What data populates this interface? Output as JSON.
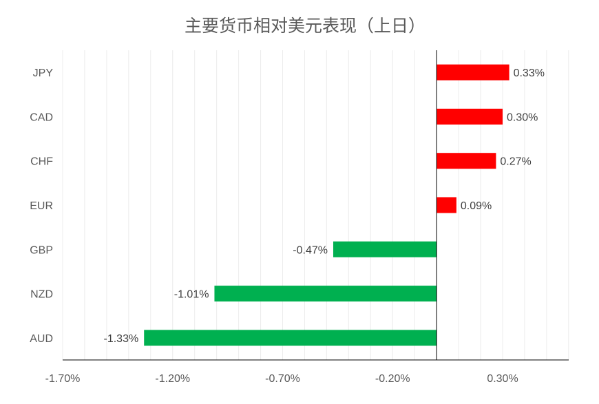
{
  "chart_data": {
    "type": "bar",
    "orientation": "horizontal",
    "title": "主要货币相对美元表现（上日）",
    "xlabel": "",
    "ylabel": "",
    "categories": [
      "JPY",
      "CAD",
      "CHF",
      "EUR",
      "GBP",
      "NZD",
      "AUD"
    ],
    "values": [
      0.33,
      0.3,
      0.27,
      0.09,
      -0.47,
      -1.01,
      -1.33
    ],
    "value_labels": [
      "0.33%",
      "0.30%",
      "0.27%",
      "0.09%",
      "-0.47%",
      "-1.01%",
      "-1.33%"
    ],
    "xlim": [
      -1.7,
      0.6
    ],
    "xticks": [
      -1.7,
      -1.2,
      -0.7,
      -0.2,
      0.3
    ],
    "xtick_labels": [
      "-1.70%",
      "-1.20%",
      "-0.70%",
      "-0.20%",
      "0.30%"
    ],
    "grid": "vertical-minor",
    "legend": "none",
    "colors": {
      "positive": "#ff0000",
      "negative": "#00b050",
      "axis": "#000000",
      "grid": "#ececec",
      "text": "#595959"
    }
  }
}
